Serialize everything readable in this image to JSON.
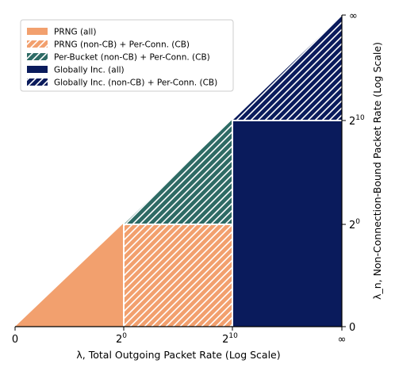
{
  "chart_data": {
    "type": "area",
    "xlabel": "λ, Total Outgoing Packet Rate (Log Scale)",
    "ylabel": "λ_n, Non-Connection-Bound Packet Rate (Log Scale)",
    "x_scale": "log",
    "y_scale": "log",
    "y_axis_side": "right",
    "x_ticks": [
      {
        "base": "0",
        "exp": ""
      },
      {
        "base": "2",
        "exp": "0"
      },
      {
        "base": "2",
        "exp": "10"
      },
      {
        "base": "∞",
        "exp": ""
      }
    ],
    "y_ticks": [
      {
        "base": "0",
        "exp": ""
      },
      {
        "base": "2",
        "exp": "0"
      },
      {
        "base": "2",
        "exp": "10"
      },
      {
        "base": "∞",
        "exp": ""
      }
    ],
    "constraint": "λ_n ≤ λ",
    "regions": [
      {
        "name": "PRNG (all)",
        "x_range": [
          "0",
          "2^0"
        ],
        "y_range": [
          "0",
          "λ"
        ],
        "color": "#f2a06e",
        "hatched": false
      },
      {
        "name": "PRNG (non-CB) + Per-Conn. (CB)",
        "x_range": [
          "2^0",
          "2^10"
        ],
        "y_range": [
          "0",
          "2^0"
        ],
        "color": "#f2a06e",
        "hatched": true
      },
      {
        "name": "Per-Bucket (non-CB) + Per-Conn. (CB)",
        "x_range": [
          "2^0",
          "2^10"
        ],
        "y_range": [
          "2^0",
          "λ"
        ],
        "color": "#2e6b65",
        "hatched": true
      },
      {
        "name": "Globally Inc. (all)",
        "x_range": [
          "2^10",
          "∞"
        ],
        "y_range": [
          "0",
          "2^10"
        ],
        "color": "#0a1b5c",
        "hatched": false
      },
      {
        "name": "Globally Inc. (non-CB) + Per-Conn. (CB)",
        "x_range": [
          "2^10",
          "∞"
        ],
        "y_range": [
          "2^10",
          "λ"
        ],
        "color": "#0a1b5c",
        "hatched": true
      }
    ],
    "legend_position": "top-left",
    "grid": false
  }
}
